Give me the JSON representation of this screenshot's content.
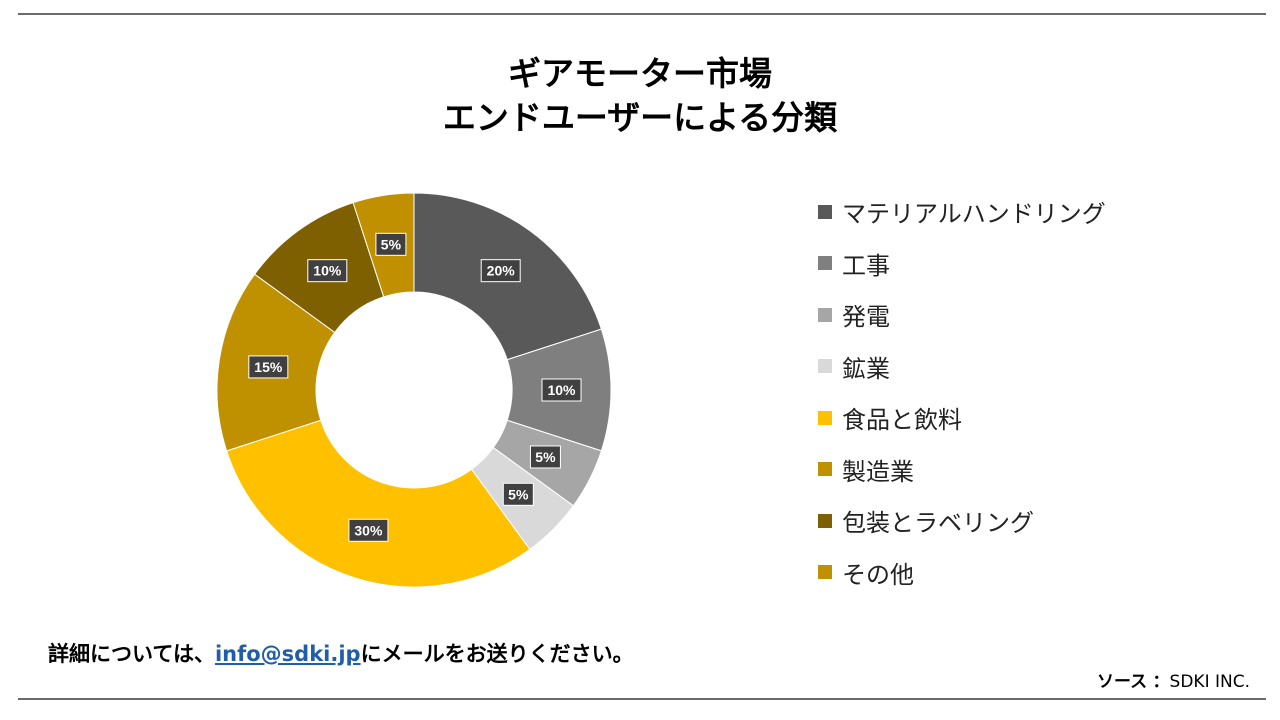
{
  "title": {
    "line1": "ギアモーター市場",
    "line2": "エンドユーザーによる分類"
  },
  "chart_data": {
    "type": "pie",
    "style": "donut",
    "categories": [
      "マテリアルハンドリング",
      "工事",
      "発電",
      "鉱業",
      "食品と飲料",
      "製造業",
      "包装とラベリング",
      "その他"
    ],
    "values": [
      20,
      10,
      5,
      5,
      30,
      15,
      10,
      5
    ],
    "labels": [
      "20%",
      "10%",
      "5%",
      "5%",
      "30%",
      "15%",
      "10%",
      "5%"
    ],
    "colors": [
      "#595959",
      "#7f7f7f",
      "#a6a6a6",
      "#d9d9d9",
      "#ffc000",
      "#bf9000",
      "#7f6000",
      "#c09000"
    ],
    "legend_position": "right"
  },
  "footer": {
    "note_before": "詳細については、",
    "email": "info@sdki.jp",
    "note_after": "にメールをお送りください。",
    "source_label": "ソース",
    "source_sep": "：",
    "source_value": "SDKI INC."
  }
}
